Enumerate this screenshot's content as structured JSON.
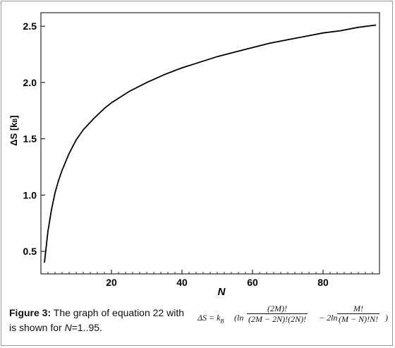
{
  "chart_data": {
    "type": "line",
    "xlabel": "N",
    "ylabel": "ΔS [k",
    "ylabel_sub": "B",
    "ylabel_close": "]",
    "xlim": [
      0,
      96
    ],
    "ylim": [
      0.3,
      2.62
    ],
    "xticks": [
      20,
      40,
      60,
      80
    ],
    "xtick_labels": [
      "20",
      "40",
      "60",
      "80"
    ],
    "yticks": [
      0.5,
      1.0,
      1.5,
      2.0,
      2.5
    ],
    "ytick_labels": [
      "0.5",
      "1.0",
      "1.5",
      "2.0",
      "2.5"
    ],
    "grid": false,
    "line_color": "#000000",
    "series": [
      {
        "x": [
          1,
          2,
          3,
          4,
          5,
          6,
          8,
          10,
          12,
          15,
          18,
          20,
          25,
          30,
          35,
          40,
          45,
          50,
          55,
          60,
          65,
          70,
          75,
          80,
          85,
          90,
          95
        ],
        "y": [
          0.4,
          0.68,
          0.87,
          1.02,
          1.13,
          1.22,
          1.37,
          1.49,
          1.58,
          1.68,
          1.77,
          1.82,
          1.92,
          2.0,
          2.07,
          2.13,
          2.18,
          2.23,
          2.27,
          2.31,
          2.35,
          2.38,
          2.41,
          2.44,
          2.46,
          2.49,
          2.51
        ]
      }
    ]
  },
  "caption": {
    "label": "Figure 3:",
    "text_before": " The graph of equation 22 with ",
    "line2_prefix": "is shown for ",
    "line2_var": "N",
    "line2_suffix": "=1..95."
  },
  "formula": {
    "lhs": "ΔS = k",
    "lhs_sub": "B",
    "open": "(ln",
    "frac1_num": "(2M)!",
    "frac1_den": "(2M − 2N)!(2N)!",
    "mid": "− 2ln",
    "frac2_num": "M!",
    "frac2_den": "(M − N)!N!",
    "close": ")"
  }
}
